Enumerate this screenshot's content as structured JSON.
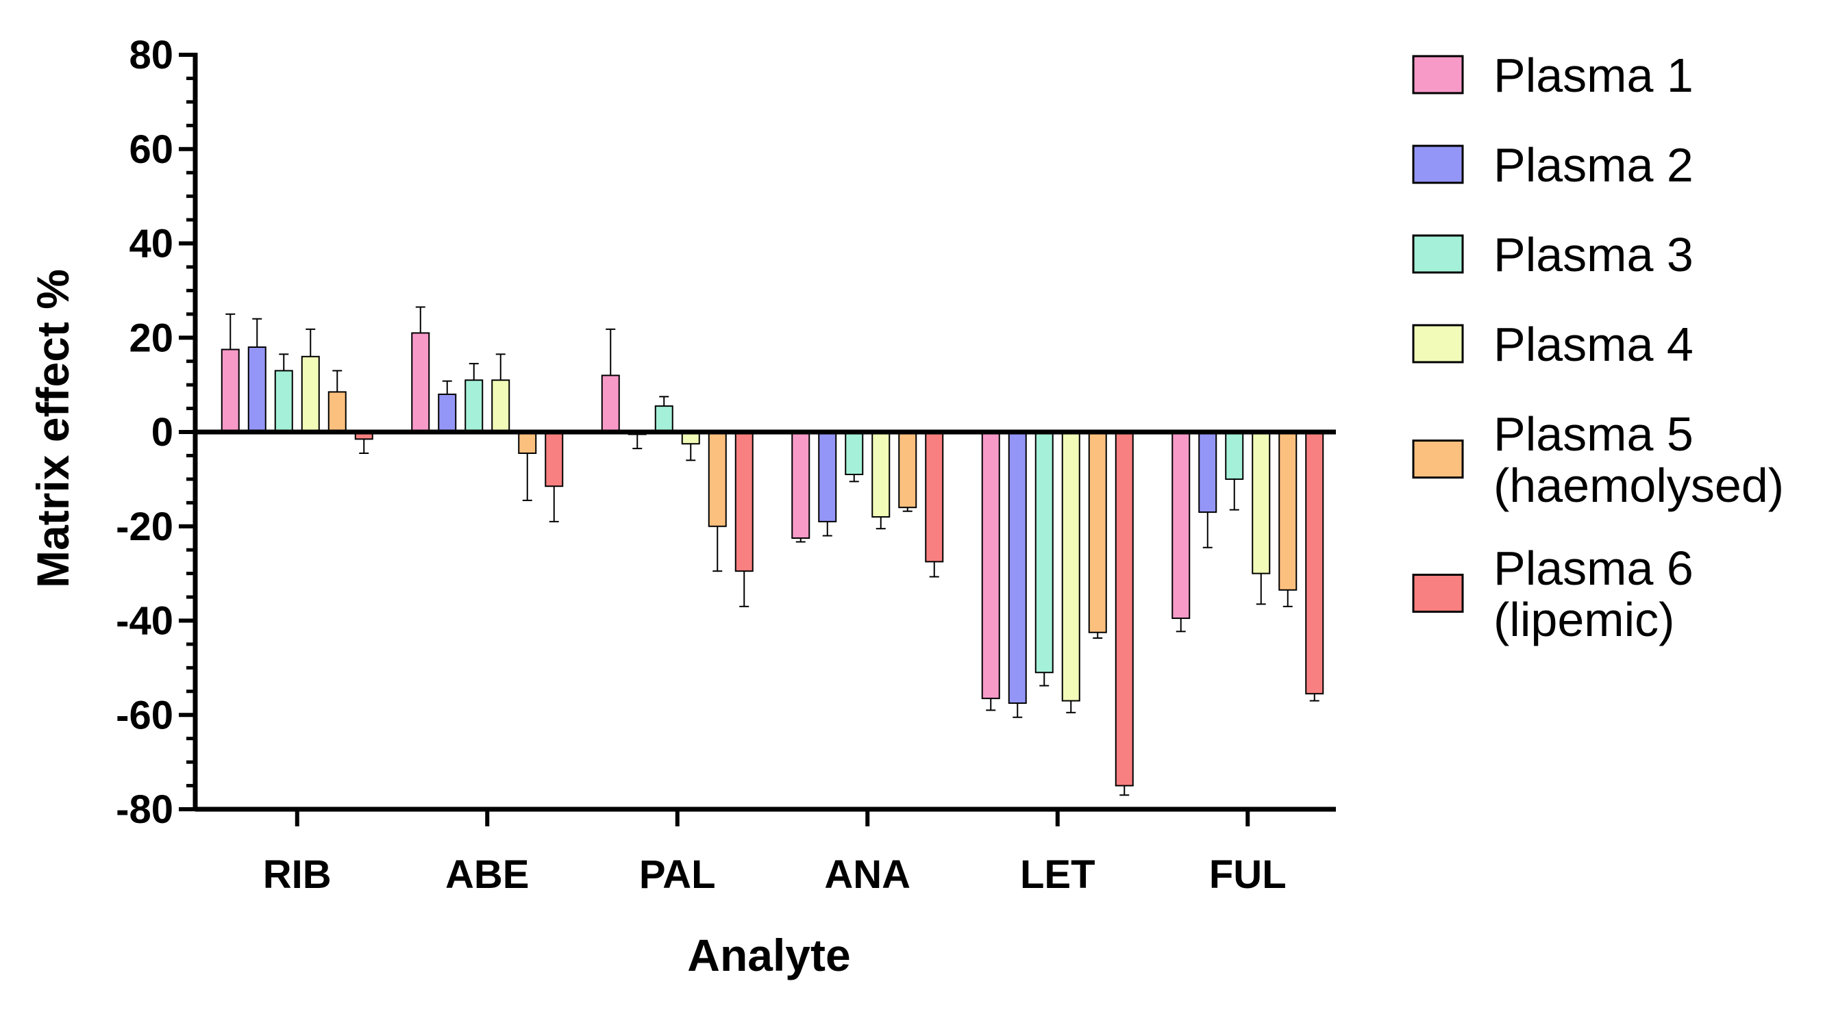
{
  "chart_data": {
    "type": "bar",
    "title": "",
    "xlabel": "Analyte",
    "ylabel": "Matrix effect %",
    "ylim": [
      -80,
      80
    ],
    "yticks": [
      80,
      60,
      40,
      20,
      0,
      -20,
      -40,
      -60,
      -80
    ],
    "ytick_labels": [
      "80",
      "60",
      "40",
      "20",
      "0",
      "-20",
      "-40",
      "-60",
      "-80"
    ],
    "categories": [
      "RIB",
      "ABE",
      "PAL",
      "ANA",
      "LET",
      "FUL"
    ],
    "legend_position": "right",
    "series": [
      {
        "name": "Plasma 1",
        "label_lines": [
          "Plasma 1"
        ],
        "color": "#f79ac8",
        "values": [
          17.5,
          21.0,
          12.0,
          -22.5,
          -56.5,
          -39.5
        ],
        "errors": [
          7.5,
          5.5,
          9.8,
          0.8,
          2.5,
          2.8
        ]
      },
      {
        "name": "Plasma 2",
        "label_lines": [
          "Plasma 2"
        ],
        "color": "#9496f7",
        "values": [
          18.0,
          8.0,
          -0.5,
          -19.0,
          -57.5,
          -17.0
        ],
        "errors": [
          6.0,
          2.8,
          3.0,
          3.0,
          3.0,
          7.5
        ]
      },
      {
        "name": "Plasma 3",
        "label_lines": [
          "Plasma 3"
        ],
        "color": "#a5f0d8",
        "values": [
          13.0,
          11.0,
          5.5,
          -9.0,
          -51.0,
          -10.0
        ],
        "errors": [
          3.5,
          3.5,
          2.0,
          1.5,
          2.8,
          6.5
        ]
      },
      {
        "name": "Plasma 4",
        "label_lines": [
          "Plasma 4"
        ],
        "color": "#f2fcb8",
        "values": [
          16.0,
          11.0,
          -2.5,
          -18.0,
          -57.0,
          -30.0
        ],
        "errors": [
          5.8,
          5.5,
          3.5,
          2.5,
          2.5,
          6.5
        ]
      },
      {
        "name": "Plasma 5 (haemolysed)",
        "label_lines": [
          "Plasma 5",
          "(haemolysed)"
        ],
        "color": "#fcc07e",
        "values": [
          8.5,
          -4.5,
          -20.0,
          -16.0,
          -42.5,
          -33.5
        ],
        "errors": [
          4.5,
          10.0,
          9.5,
          0.8,
          1.2,
          3.5
        ]
      },
      {
        "name": "Plasma 6 (lipemic)",
        "label_lines": [
          "Plasma 6",
          "(lipemic)"
        ],
        "color": "#f98080",
        "values": [
          -1.5,
          -11.5,
          -29.5,
          -27.5,
          -75.0,
          -55.5
        ],
        "errors": [
          3.0,
          7.5,
          7.5,
          3.2,
          2.0,
          1.5
        ]
      }
    ]
  }
}
